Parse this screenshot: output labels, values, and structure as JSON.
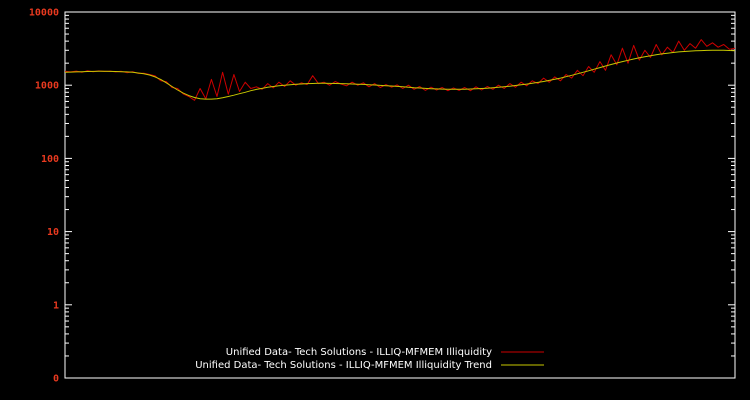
{
  "figure": {
    "background": "#000000"
  },
  "chart_data": {
    "type": "line",
    "title": "",
    "xlabel": "",
    "ylabel": "",
    "yscale": "log",
    "ylim": [
      0.1,
      10000
    ],
    "ytick_labels": [
      "10000",
      "1000",
      "100",
      "10",
      "1",
      "0"
    ],
    "ytick_values": [
      10000,
      1000,
      100,
      10,
      1,
      0.1
    ],
    "x_tick_labels": [],
    "grid": false,
    "legend_position": "bottom-center-inside",
    "legend_text_color": "#ffffff",
    "axis_label_color": "#e8391f",
    "border_color": "#ffffff",
    "background": "#000000",
    "series": [
      {
        "name": "Unified Data- Tech Solutions - ILLIQ-MFMEM Illiquidity",
        "color": "#cc0000",
        "values": [
          1550,
          1520,
          1560,
          1500,
          1580,
          1530,
          1570,
          1540,
          1560,
          1520,
          1550,
          1480,
          1530,
          1450,
          1460,
          1400,
          1340,
          1150,
          1120,
          930,
          900,
          760,
          700,
          620,
          900,
          650,
          1200,
          700,
          1500,
          750,
          1400,
          820,
          1100,
          900,
          950,
          880,
          1050,
          920,
          1100,
          960,
          1150,
          1000,
          1080,
          1020,
          1350,
          1050,
          1100,
          1000,
          1120,
          1040,
          980,
          1100,
          1000,
          1080,
          950,
          1050,
          930,
          1020,
          940,
          1010,
          900,
          1000,
          880,
          960,
          850,
          940,
          860,
          930,
          840,
          920,
          850,
          930,
          840,
          950,
          860,
          960,
          880,
          1000,
          900,
          1050,
          940,
          1100,
          980,
          1150,
          1050,
          1250,
          1100,
          1300,
          1150,
          1400,
          1250,
          1600,
          1350,
          1800,
          1500,
          2100,
          1600,
          2600,
          1900,
          3200,
          2000,
          3500,
          2200,
          3000,
          2400,
          3600,
          2600,
          3300,
          2800,
          4000,
          3000,
          3700,
          3200,
          4200,
          3400,
          3800,
          3300,
          3600,
          3100,
          3200
        ]
      },
      {
        "name": "Unified Data- Tech Solutions - ILLIQ-MFMEM Illiquidity Trend",
        "color": "#c8c800",
        "values": [
          1500,
          1510,
          1520,
          1530,
          1540,
          1545,
          1550,
          1550,
          1545,
          1540,
          1530,
          1520,
          1500,
          1470,
          1430,
          1380,
          1300,
          1200,
          1080,
          960,
          860,
          780,
          720,
          680,
          655,
          645,
          645,
          655,
          675,
          700,
          730,
          765,
          800,
          840,
          875,
          905,
          935,
          960,
          980,
          1000,
          1015,
          1030,
          1040,
          1050,
          1055,
          1060,
          1060,
          1058,
          1055,
          1050,
          1045,
          1040,
          1032,
          1025,
          1015,
          1005,
          995,
          985,
          975,
          963,
          950,
          938,
          925,
          915,
          905,
          897,
          890,
          885,
          882,
          880,
          880,
          882,
          886,
          892,
          900,
          910,
          922,
          936,
          952,
          970,
          990,
          1012,
          1036,
          1062,
          1092,
          1125,
          1162,
          1205,
          1252,
          1305,
          1365,
          1430,
          1500,
          1575,
          1655,
          1740,
          1830,
          1920,
          2010,
          2100,
          2190,
          2280,
          2365,
          2450,
          2530,
          2605,
          2675,
          2740,
          2800,
          2850,
          2890,
          2925,
          2950,
          2970,
          2985,
          2995,
          3000,
          2995,
          2980,
          2960
        ]
      }
    ]
  }
}
